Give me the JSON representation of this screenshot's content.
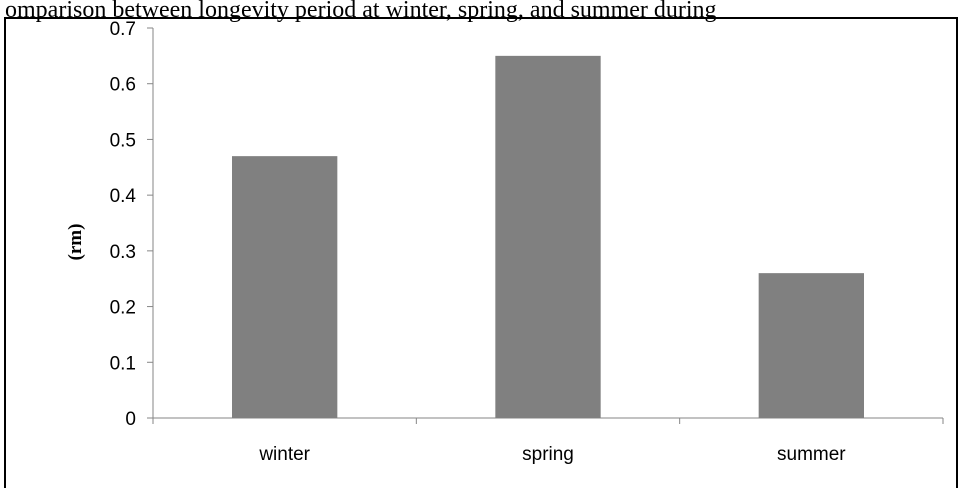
{
  "chart_data": {
    "type": "bar",
    "title": "omparison between longevity period at winter, spring, and summer during",
    "ylabel": "(rm)",
    "xlabel": "",
    "categories": [
      "winter",
      "spring",
      "summer"
    ],
    "values": [
      0.47,
      0.65,
      0.26
    ],
    "ylim": [
      0,
      0.7
    ],
    "yticks": [
      "0",
      "0.1",
      "0.2",
      "0.3",
      "0.4",
      "0.5",
      "0.6",
      "0.7"
    ],
    "grid": false,
    "legend": "none",
    "bar_color": "#808080",
    "axis_color": "#868686"
  }
}
